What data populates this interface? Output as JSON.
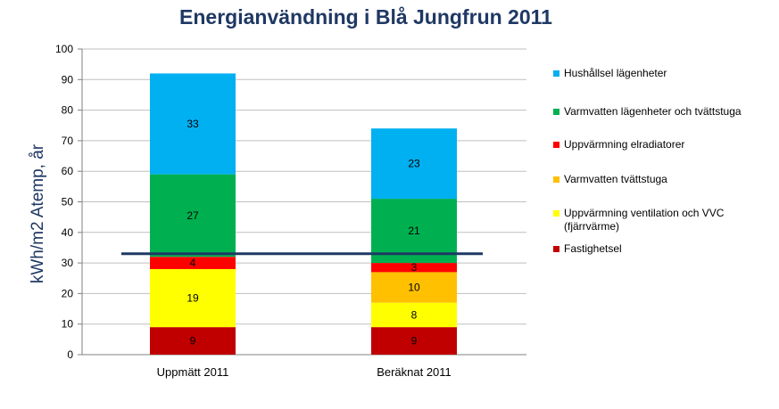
{
  "chart_data": {
    "type": "bar",
    "stacked": true,
    "title": "Energianvändning i Blå Jungfrun 2011",
    "ylabel": "kWh/m2 Atemp, år",
    "xlabel": "",
    "ylim": [
      0,
      100
    ],
    "yticks": [
      0,
      10,
      20,
      30,
      40,
      50,
      60,
      70,
      80,
      90,
      100
    ],
    "categories": [
      "Uppmätt 2011",
      "Beräknat 2011"
    ],
    "grid": true,
    "legend_position": "right",
    "series": [
      {
        "name": "Fastighetsel",
        "color": "#c00000",
        "values": [
          9,
          9
        ]
      },
      {
        "name": "Uppvärmning ventilation och VVC (fjärrvärme)",
        "color": "#ffff00",
        "values": [
          19,
          8
        ]
      },
      {
        "name": "Varmvatten tvättstuga",
        "color": "#ffc000",
        "values": [
          0,
          10
        ]
      },
      {
        "name": "Uppvärmning elradiatorer",
        "color": "#ff0000",
        "values": [
          4,
          3
        ]
      },
      {
        "name": "Varmvatten lägenheter och tvättstuga",
        "color": "#00b050",
        "values": [
          27,
          21
        ]
      },
      {
        "name": "Hushållsel lägenheter",
        "color": "#00b0f0",
        "values": [
          33,
          23
        ]
      }
    ],
    "data_labels": [
      [
        "9",
        "19",
        "",
        "4",
        "27",
        "33"
      ],
      [
        "9",
        "8",
        "10",
        "3",
        "21",
        "23"
      ]
    ],
    "reference_line": {
      "y": 33,
      "color": "#1f3864"
    }
  }
}
